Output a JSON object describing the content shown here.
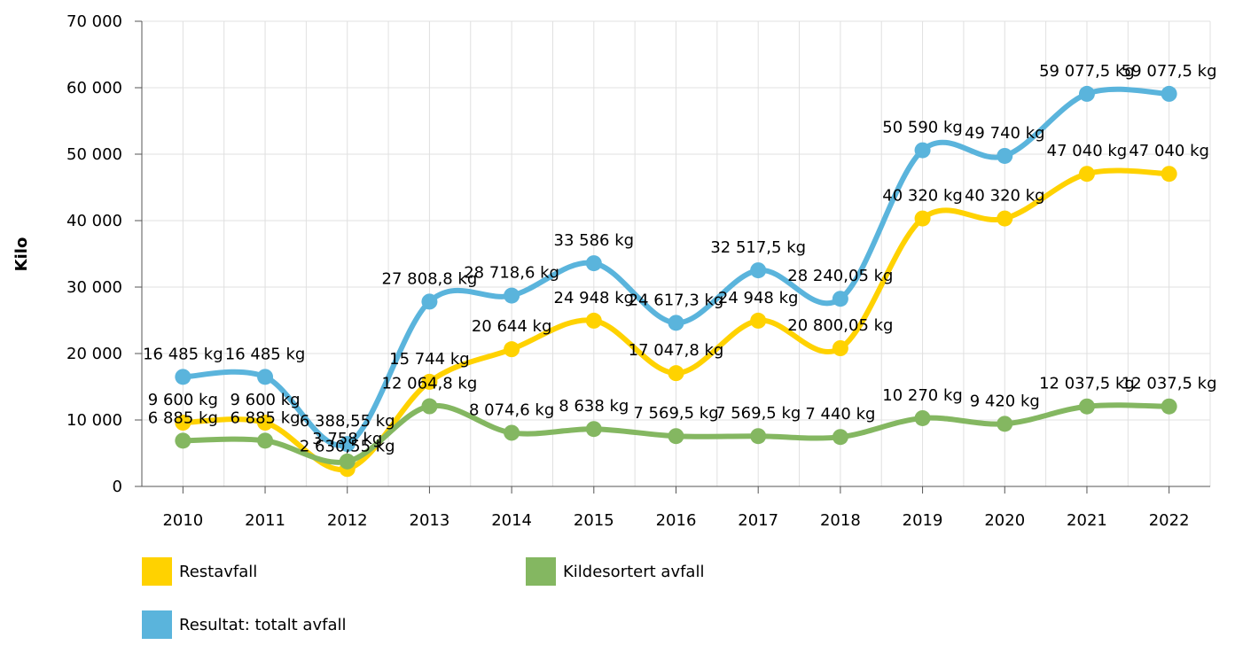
{
  "chart_data": {
    "type": "line",
    "ylabel": "Kilo",
    "categories": [
      "2010",
      "2011",
      "2012",
      "2013",
      "2014",
      "2015",
      "2016",
      "2017",
      "2018",
      "2019",
      "2020",
      "2021",
      "2022"
    ],
    "series": [
      {
        "name": "Resultat: totalt avfall",
        "color": "#5ab4dc",
        "values": [
          16485,
          16485,
          6388.55,
          27808.8,
          28718.6,
          33586,
          24617.3,
          32517.5,
          28240.05,
          50590,
          49740,
          59077.5,
          59077.5
        ],
        "value_labels": [
          "16 485 kg",
          "16 485 kg",
          "6 388,55 kg",
          "27 808,8 kg",
          "28 718,6 kg",
          "33 586 kg",
          "24 617,3 kg",
          "32 517,5 kg",
          "28 240,05 kg",
          "50 590 kg",
          "49 740 kg",
          "59 077,5 kg",
          "59 077,5 kg"
        ]
      },
      {
        "name": "Restavfall",
        "color": "#ffd200",
        "values": [
          9600,
          9600,
          2630.55,
          15744,
          20644,
          24948,
          17047.8,
          24948,
          20800.05,
          40320,
          40320,
          47040,
          47040
        ],
        "value_labels": [
          "9 600 kg",
          "9 600 kg",
          "2 630,55 kg",
          "15 744 kg",
          "20 644 kg",
          "24 948 kg",
          "17 047,8 kg",
          "24 948 kg",
          "20 800,05 kg",
          "40 320 kg",
          "40 320 kg",
          "47 040 kg",
          "47 040 kg"
        ]
      },
      {
        "name": "Kildesortert avfall",
        "color": "#84b761",
        "values": [
          6885,
          6885,
          3758,
          12064.8,
          8074.6,
          8638,
          7569.5,
          7569.5,
          7440,
          10270,
          9420,
          12037.5,
          12037.5
        ],
        "value_labels": [
          "6 885 kg",
          "6 885 kg",
          "3 758 kg",
          "12 064,8 kg",
          "8 074,6 kg",
          "8 638 kg",
          "7 569,5 kg",
          "7 569,5 kg",
          "7 440 kg",
          "10 270 kg",
          "9 420 kg",
          "12 037,5 kg",
          "12 037,5 kg"
        ]
      }
    ],
    "ylim": [
      0,
      70000
    ],
    "yticks": [
      0,
      {
        "value": 10000,
        "label": "10 000"
      },
      {
        "value": 20000,
        "label": "20 000"
      },
      {
        "value": 30000,
        "label": "30 000"
      },
      {
        "value": 40000,
        "label": "40 000"
      },
      {
        "value": 50000,
        "label": "50 000"
      },
      {
        "value": 60000,
        "label": "60 000"
      },
      {
        "value": 70000,
        "label": "70 000"
      }
    ],
    "grid": true
  }
}
